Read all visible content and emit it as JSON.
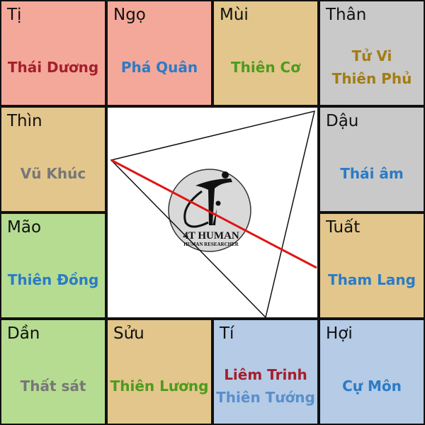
{
  "palaces": [
    {
      "branch": "Tị",
      "bg": "#f4a89a",
      "stars": [
        {
          "name": "Thái Dương",
          "color": "#a3202c"
        }
      ]
    },
    {
      "branch": "Ngọ",
      "bg": "#f4a89a",
      "stars": [
        {
          "name": "Phá Quân",
          "color": "#2b7bc6"
        }
      ]
    },
    {
      "branch": "Mùi",
      "bg": "#e2c68c",
      "stars": [
        {
          "name": "Thiên Cơ",
          "color": "#4c9c1c"
        }
      ]
    },
    {
      "branch": "Thân",
      "bg": "#c9c9c9",
      "stars": [
        {
          "name": "Tử Vi",
          "color": "#a37c12"
        },
        {
          "name": "Thiên Phủ",
          "color": "#a37c12"
        }
      ]
    },
    {
      "branch": "Thìn",
      "bg": "#e2c68c",
      "stars": [
        {
          "name": "Vũ Khúc",
          "color": "#777777"
        }
      ]
    },
    {
      "branch": "Dậu",
      "bg": "#c9c9c9",
      "stars": [
        {
          "name": "Thái âm",
          "color": "#2b7bc6"
        }
      ]
    },
    {
      "branch": "Mão",
      "bg": "#b6dc92",
      "stars": [
        {
          "name": "Thiên Đồng",
          "color": "#2b7bc6"
        }
      ]
    },
    {
      "branch": "Tuất",
      "bg": "#e2c68c",
      "stars": [
        {
          "name": "Tham Lang",
          "color": "#2b7bc6"
        }
      ]
    },
    {
      "branch": "Dần",
      "bg": "#b6dc92",
      "stars": [
        {
          "name": "Thất sát",
          "color": "#777777"
        }
      ]
    },
    {
      "branch": "Sửu",
      "bg": "#e2c68c",
      "stars": [
        {
          "name": "Thiên Lương",
          "color": "#4c9c1c"
        }
      ]
    },
    {
      "branch": "Tí",
      "bg": "#b5cbe6",
      "stars": [
        {
          "name": "Liêm Trinh",
          "color": "#a3202c"
        },
        {
          "name": "Thiên Tướng",
          "color": "#5a8fcc"
        }
      ]
    },
    {
      "branch": "Hợi",
      "bg": "#b5cbe6",
      "stars": [
        {
          "name": "Cự Môn",
          "color": "#2b7bc6"
        }
      ]
    }
  ],
  "logo": {
    "brand": "4T HUMAN",
    "tagline": "HUMAN RESEARCHER"
  },
  "colors": {
    "triangle": "#111111",
    "red_line": "#e01515",
    "logo_circle": "#d9d9d9"
  }
}
